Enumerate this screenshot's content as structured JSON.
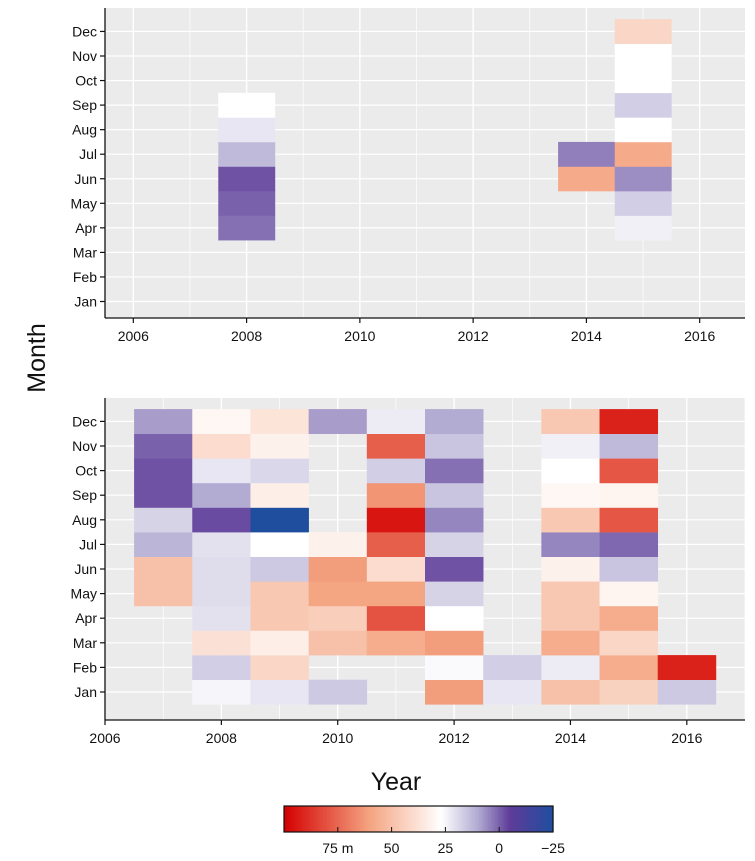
{
  "chart_data": [
    {
      "type": "heatmap",
      "xlim": [
        2005.5,
        2016.8
      ],
      "x_ticks": [
        "2006",
        "2008",
        "2010",
        "2012",
        "2014",
        "2016"
      ],
      "y_ticks": [
        "Jan",
        "Feb",
        "Mar",
        "Apr",
        "May",
        "Jun",
        "Jul",
        "Aug",
        "Sep",
        "Oct",
        "Nov",
        "Dec"
      ],
      "grid": true,
      "cells": [
        {
          "x": 2008,
          "month": "Apr",
          "value": 2
        },
        {
          "x": 2008,
          "month": "May",
          "value": 0
        },
        {
          "x": 2008,
          "month": "Jun",
          "value": -2
        },
        {
          "x": 2008,
          "month": "Jul",
          "value": 13
        },
        {
          "x": 2008,
          "month": "Aug",
          "value": 22
        },
        {
          "x": 2008,
          "month": "Sep",
          "value": 27
        },
        {
          "x": 2014,
          "month": "Jun",
          "value": 58
        },
        {
          "x": 2014,
          "month": "Jul",
          "value": 4
        },
        {
          "x": 2015,
          "month": "Apr",
          "value": 24
        },
        {
          "x": 2015,
          "month": "May",
          "value": 17
        },
        {
          "x": 2015,
          "month": "Jun",
          "value": 6
        },
        {
          "x": 2015,
          "month": "Jul",
          "value": 58
        },
        {
          "x": 2015,
          "month": "Aug",
          "value": 27
        },
        {
          "x": 2015,
          "month": "Sep",
          "value": 17
        },
        {
          "x": 2015,
          "month": "Oct",
          "value": 27
        },
        {
          "x": 2015,
          "month": "Nov",
          "value": 27
        },
        {
          "x": 2015,
          "month": "Dec",
          "value": 42
        }
      ]
    },
    {
      "type": "heatmap",
      "xlim": [
        2006,
        2017
      ],
      "xlabel": "Year",
      "ylabel": "Month",
      "x_ticks": [
        "2006",
        "2008",
        "2010",
        "2012",
        "2014",
        "2016"
      ],
      "y_ticks": [
        "Jan",
        "Feb",
        "Mar",
        "Apr",
        "May",
        "Jun",
        "Jul",
        "Aug",
        "Sep",
        "Oct",
        "Nov",
        "Dec"
      ],
      "grid": true,
      "cells": [
        {
          "x": 2007,
          "month": "May",
          "value": 50
        },
        {
          "x": 2007,
          "month": "Jun",
          "value": 50
        },
        {
          "x": 2007,
          "month": "Jul",
          "value": 12
        },
        {
          "x": 2007,
          "month": "Aug",
          "value": 18
        },
        {
          "x": 2007,
          "month": "Sep",
          "value": -2
        },
        {
          "x": 2007,
          "month": "Oct",
          "value": -2
        },
        {
          "x": 2007,
          "month": "Nov",
          "value": 0
        },
        {
          "x": 2007,
          "month": "Dec",
          "value": 8
        },
        {
          "x": 2008,
          "month": "Jan",
          "value": 25
        },
        {
          "x": 2008,
          "month": "Feb",
          "value": 17
        },
        {
          "x": 2008,
          "month": "Mar",
          "value": 38
        },
        {
          "x": 2008,
          "month": "Apr",
          "value": 21
        },
        {
          "x": 2008,
          "month": "May",
          "value": 20
        },
        {
          "x": 2008,
          "month": "Jun",
          "value": 20
        },
        {
          "x": 2008,
          "month": "Jul",
          "value": 21
        },
        {
          "x": 2008,
          "month": "Aug",
          "value": -3
        },
        {
          "x": 2008,
          "month": "Sep",
          "value": 10
        },
        {
          "x": 2008,
          "month": "Oct",
          "value": 22
        },
        {
          "x": 2008,
          "month": "Nov",
          "value": 40
        },
        {
          "x": 2008,
          "month": "Dec",
          "value": 30
        },
        {
          "x": 2009,
          "month": "Jan",
          "value": 22
        },
        {
          "x": 2009,
          "month": "Feb",
          "value": 42
        },
        {
          "x": 2009,
          "month": "Mar",
          "value": 33
        },
        {
          "x": 2009,
          "month": "Apr",
          "value": 47
        },
        {
          "x": 2009,
          "month": "May",
          "value": 47
        },
        {
          "x": 2009,
          "month": "Jun",
          "value": 16
        },
        {
          "x": 2009,
          "month": "Jul",
          "value": 27
        },
        {
          "x": 2009,
          "month": "Aug",
          "value": -25
        },
        {
          "x": 2009,
          "month": "Sep",
          "value": 33
        },
        {
          "x": 2009,
          "month": "Oct",
          "value": 19
        },
        {
          "x": 2009,
          "month": "Nov",
          "value": 32
        },
        {
          "x": 2009,
          "month": "Dec",
          "value": 37
        },
        {
          "x": 2010,
          "month": "Jan",
          "value": 16
        },
        {
          "x": 2010,
          "month": "Mar",
          "value": 50
        },
        {
          "x": 2010,
          "month": "Apr",
          "value": 45
        },
        {
          "x": 2010,
          "month": "May",
          "value": 60
        },
        {
          "x": 2010,
          "month": "Jun",
          "value": 62
        },
        {
          "x": 2010,
          "month": "Jul",
          "value": 32
        },
        {
          "x": 2010,
          "month": "Dec",
          "value": 8
        },
        {
          "x": 2011,
          "month": "Mar",
          "value": 57
        },
        {
          "x": 2011,
          "month": "Apr",
          "value": 80
        },
        {
          "x": 2011,
          "month": "May",
          "value": 60
        },
        {
          "x": 2011,
          "month": "Jun",
          "value": 40
        },
        {
          "x": 2011,
          "month": "Jul",
          "value": 77
        },
        {
          "x": 2011,
          "month": "Aug",
          "value": 95
        },
        {
          "x": 2011,
          "month": "Sep",
          "value": 64
        },
        {
          "x": 2011,
          "month": "Oct",
          "value": 17
        },
        {
          "x": 2011,
          "month": "Nov",
          "value": 77
        },
        {
          "x": 2011,
          "month": "Dec",
          "value": 23
        },
        {
          "x": 2012,
          "month": "Jan",
          "value": 62
        },
        {
          "x": 2012,
          "month": "Feb",
          "value": 26
        },
        {
          "x": 2012,
          "month": "Mar",
          "value": 62
        },
        {
          "x": 2012,
          "month": "Apr",
          "value": 27
        },
        {
          "x": 2012,
          "month": "May",
          "value": 18
        },
        {
          "x": 2012,
          "month": "Jun",
          "value": -2
        },
        {
          "x": 2012,
          "month": "Jul",
          "value": 18
        },
        {
          "x": 2012,
          "month": "Aug",
          "value": 5
        },
        {
          "x": 2012,
          "month": "Sep",
          "value": 15
        },
        {
          "x": 2012,
          "month": "Oct",
          "value": 2
        },
        {
          "x": 2012,
          "month": "Nov",
          "value": 15
        },
        {
          "x": 2012,
          "month": "Dec",
          "value": 10
        },
        {
          "x": 2013,
          "month": "Jan",
          "value": 22
        },
        {
          "x": 2013,
          "month": "Feb",
          "value": 17
        },
        {
          "x": 2014,
          "month": "Jan",
          "value": 50
        },
        {
          "x": 2014,
          "month": "Feb",
          "value": 23
        },
        {
          "x": 2014,
          "month": "Mar",
          "value": 57
        },
        {
          "x": 2014,
          "month": "Apr",
          "value": 47
        },
        {
          "x": 2014,
          "month": "May",
          "value": 47
        },
        {
          "x": 2014,
          "month": "Jun",
          "value": 32
        },
        {
          "x": 2014,
          "month": "Jul",
          "value": 5
        },
        {
          "x": 2014,
          "month": "Aug",
          "value": 47
        },
        {
          "x": 2014,
          "month": "Sep",
          "value": 30
        },
        {
          "x": 2014,
          "month": "Oct",
          "value": 27
        },
        {
          "x": 2014,
          "month": "Nov",
          "value": 24
        },
        {
          "x": 2014,
          "month": "Dec",
          "value": 47
        },
        {
          "x": 2015,
          "month": "Jan",
          "value": 44
        },
        {
          "x": 2015,
          "month": "Feb",
          "value": 57
        },
        {
          "x": 2015,
          "month": "Mar",
          "value": 42
        },
        {
          "x": 2015,
          "month": "Apr",
          "value": 57
        },
        {
          "x": 2015,
          "month": "May",
          "value": 31
        },
        {
          "x": 2015,
          "month": "Jun",
          "value": 15
        },
        {
          "x": 2015,
          "month": "Jul",
          "value": 1
        },
        {
          "x": 2015,
          "month": "Aug",
          "value": 79
        },
        {
          "x": 2015,
          "month": "Sep",
          "value": 31
        },
        {
          "x": 2015,
          "month": "Oct",
          "value": 79
        },
        {
          "x": 2015,
          "month": "Nov",
          "value": 13
        },
        {
          "x": 2015,
          "month": "Dec",
          "value": 92
        },
        {
          "x": 2016,
          "month": "Jan",
          "value": 16
        },
        {
          "x": 2016,
          "month": "Feb",
          "value": 92
        }
      ]
    }
  ],
  "colorbar": {
    "ticks": [
      "75 m",
      "50",
      "25",
      "0",
      "−25"
    ],
    "tick_values": [
      75,
      50,
      25,
      0,
      -25
    ],
    "range": [
      100,
      -25
    ],
    "colors": {
      "high": "#d40000",
      "mid_high": "#f4a582",
      "neutral": "#ffffff",
      "mid_low": "#b2abd2",
      "low": "#5e3c99",
      "lowest": "#1f4e9f"
    }
  }
}
